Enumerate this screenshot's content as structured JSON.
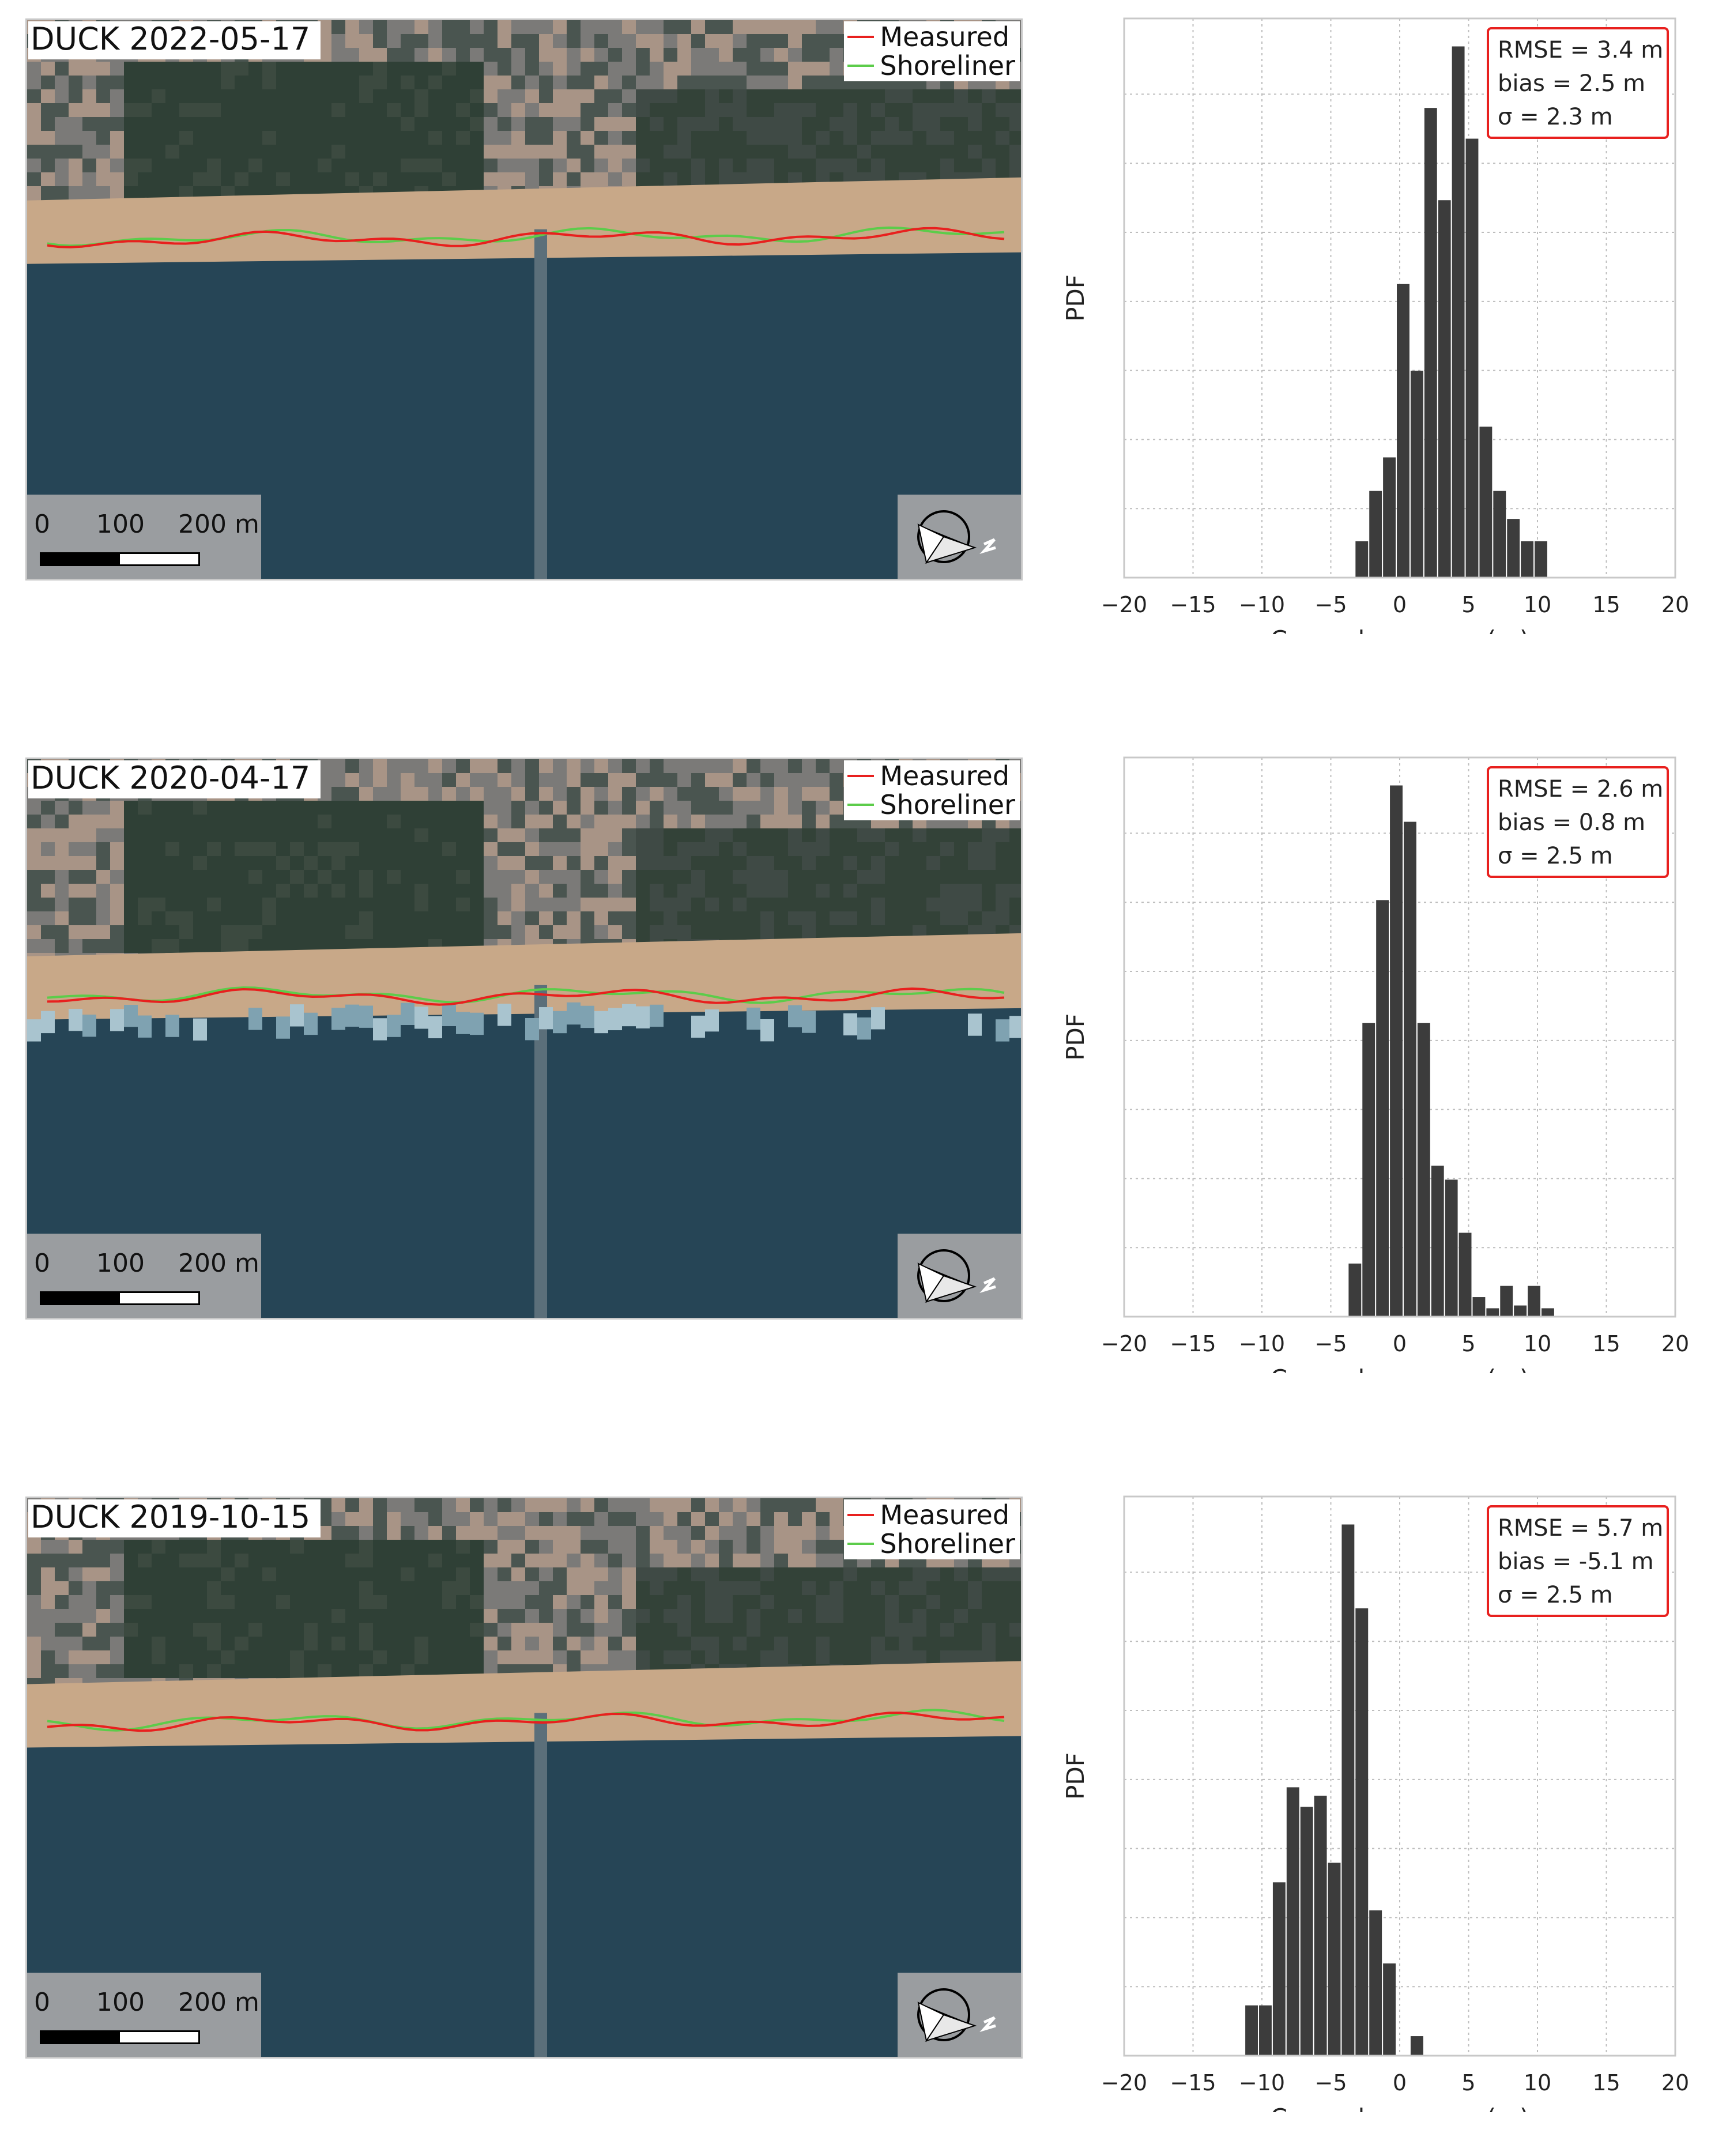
{
  "legend": {
    "measured": "Measured",
    "shoreliner": "Shoreliner"
  },
  "scalebar": {
    "labels": [
      "0",
      "100",
      "200 m"
    ]
  },
  "colors": {
    "measured": "#e8201e",
    "shoreliner": "#5ccc4a",
    "bars": "#3c3c3c",
    "stats_border": "#e8201e"
  },
  "panels": [
    {
      "map_title": "DUCK  2022-05-17",
      "shoreline_y": 0.395,
      "surf": false,
      "chart_data": {
        "type": "bar",
        "xlabel": "Cross-shore error (m)",
        "ylabel": "PDF",
        "xlim": [
          -20,
          20
        ],
        "xticks": [
          "−20",
          "−15",
          "−10",
          "−5",
          "0",
          "5",
          "10",
          "15",
          "20"
        ],
        "grid": true,
        "stats": [
          "RMSE = 3.4 m",
          "bias = 2.5 m",
          "σ = 2.3 m"
        ],
        "bins": [
          {
            "x": -2.75,
            "h": 0.065
          },
          {
            "x": -1.75,
            "h": 0.155
          },
          {
            "x": -0.75,
            "h": 0.215
          },
          {
            "x": 0.25,
            "h": 0.525
          },
          {
            "x": 1.25,
            "h": 0.37
          },
          {
            "x": 2.25,
            "h": 0.84
          },
          {
            "x": 3.25,
            "h": 0.675
          },
          {
            "x": 4.25,
            "h": 0.95
          },
          {
            "x": 5.25,
            "h": 0.785
          },
          {
            "x": 6.25,
            "h": 0.27
          },
          {
            "x": 7.25,
            "h": 0.155
          },
          {
            "x": 8.25,
            "h": 0.105
          },
          {
            "x": 9.25,
            "h": 0.065
          },
          {
            "x": 10.25,
            "h": 0.065
          }
        ]
      }
    },
    {
      "map_title": "DUCK  2020-04-17",
      "shoreline_y": 0.425,
      "surf": true,
      "chart_data": {
        "type": "bar",
        "xlabel": "Cross-shore error (m)",
        "ylabel": "PDF",
        "xlim": [
          -20,
          20
        ],
        "xticks": [
          "−20",
          "−15",
          "−10",
          "−5",
          "0",
          "5",
          "10",
          "15",
          "20"
        ],
        "grid": true,
        "stats": [
          "RMSE = 2.6 m",
          "bias = 0.8 m",
          "σ = 2.5 m"
        ],
        "bins": [
          {
            "x": -3.25,
            "h": 0.095
          },
          {
            "x": -2.25,
            "h": 0.525
          },
          {
            "x": -1.25,
            "h": 0.745
          },
          {
            "x": -0.25,
            "h": 0.95
          },
          {
            "x": 0.75,
            "h": 0.885
          },
          {
            "x": 1.75,
            "h": 0.525
          },
          {
            "x": 2.75,
            "h": 0.27
          },
          {
            "x": 3.75,
            "h": 0.245
          },
          {
            "x": 4.75,
            "h": 0.15
          },
          {
            "x": 5.75,
            "h": 0.035
          },
          {
            "x": 6.75,
            "h": 0.015
          },
          {
            "x": 7.75,
            "h": 0.055
          },
          {
            "x": 8.75,
            "h": 0.02
          },
          {
            "x": 9.75,
            "h": 0.055
          },
          {
            "x": 10.75,
            "h": 0.015
          }
        ]
      }
    },
    {
      "map_title": "DUCK  2019-10-15",
      "shoreline_y": 0.405,
      "surf": false,
      "chart_data": {
        "type": "bar",
        "xlabel": "Cross-shore error (m)",
        "ylabel": "PDF",
        "xlim": [
          -20,
          20
        ],
        "xticks": [
          "−20",
          "−15",
          "−10",
          "−5",
          "0",
          "5",
          "10",
          "15",
          "20"
        ],
        "grid": true,
        "stats": [
          "RMSE = 5.7 m",
          "bias = -5.1 m",
          "σ = 2.5 m"
        ],
        "bins": [
          {
            "x": -10.75,
            "h": 0.09
          },
          {
            "x": -9.75,
            "h": 0.09
          },
          {
            "x": -8.75,
            "h": 0.31
          },
          {
            "x": -7.75,
            "h": 0.48
          },
          {
            "x": -6.75,
            "h": 0.445
          },
          {
            "x": -5.75,
            "h": 0.465
          },
          {
            "x": -4.75,
            "h": 0.345
          },
          {
            "x": -3.75,
            "h": 0.95
          },
          {
            "x": -2.75,
            "h": 0.8
          },
          {
            "x": -1.75,
            "h": 0.26
          },
          {
            "x": -0.75,
            "h": 0.165
          },
          {
            "x": 1.25,
            "h": 0.035
          }
        ]
      }
    }
  ]
}
